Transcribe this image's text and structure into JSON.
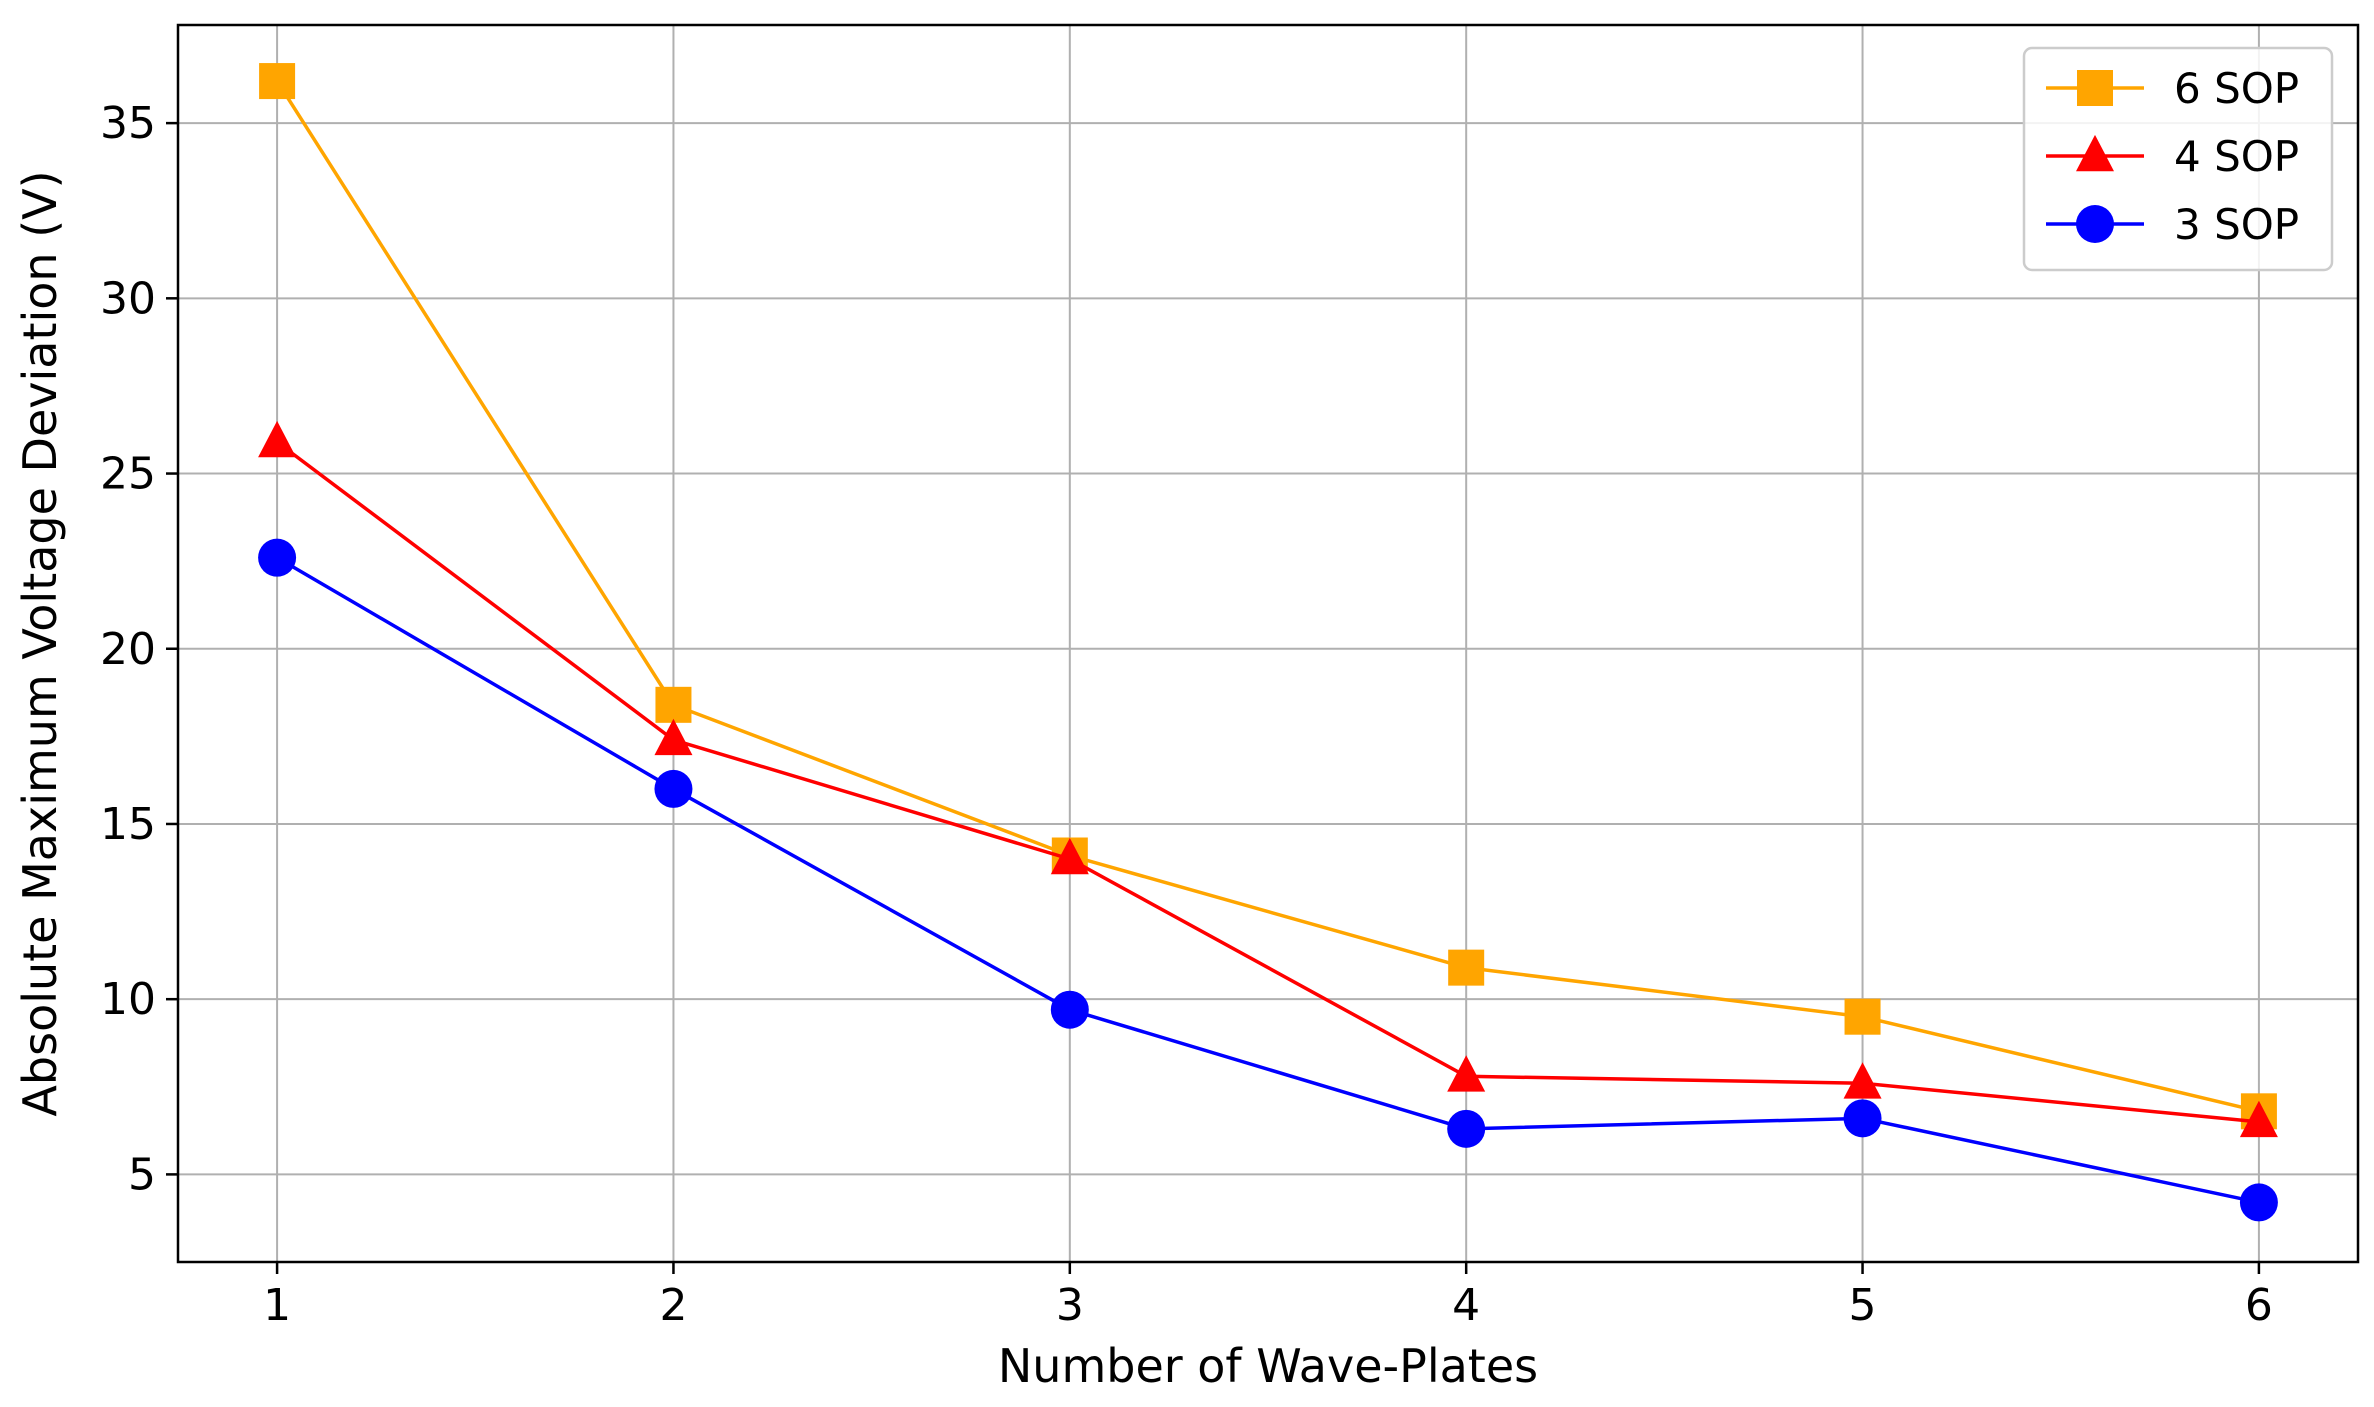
{
  "chart_data": {
    "type": "line",
    "title": "",
    "xlabel": "Number of Wave-Plates",
    "ylabel": "Absolute Maximum Voltage Deviation (V)",
    "x": [
      1,
      2,
      3,
      4,
      5,
      6
    ],
    "xlim": [
      0.75,
      6.25
    ],
    "ylim": [
      2.5,
      37.8
    ],
    "xticks": [
      1,
      2,
      3,
      4,
      5,
      6
    ],
    "yticks": [
      5,
      10,
      15,
      20,
      25,
      30,
      35
    ],
    "grid": true,
    "legend_position": "top-right",
    "series": [
      {
        "name": "6 SOP",
        "color": "#FFA500",
        "marker": "square",
        "values": [
          36.2,
          18.4,
          14.1,
          10.9,
          9.5,
          6.8
        ]
      },
      {
        "name": "4 SOP",
        "color": "#FF0000",
        "marker": "triangle",
        "values": [
          25.9,
          17.4,
          14.0,
          7.8,
          7.6,
          6.5
        ]
      },
      {
        "name": "3 SOP",
        "color": "#0000FF",
        "marker": "circle",
        "values": [
          22.6,
          16.0,
          9.7,
          6.3,
          6.6,
          4.2
        ]
      }
    ]
  }
}
